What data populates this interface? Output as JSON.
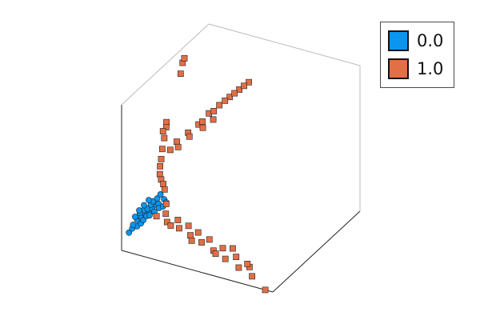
{
  "chart_data": {
    "type": "scatter",
    "projection": "3d",
    "grid": false,
    "legend_position": "top-right",
    "xlim": [
      0,
      1
    ],
    "ylim": [
      0,
      1
    ],
    "zlim": [
      0,
      1
    ],
    "series": [
      {
        "name": "0.0",
        "color": "#0a96f0",
        "marker": "circle",
        "points": [
          [
            0.02,
            0.1,
            0.05
          ],
          [
            0.03,
            0.12,
            0.07
          ],
          [
            0.05,
            0.13,
            0.09
          ],
          [
            0.07,
            0.15,
            0.1
          ],
          [
            0.03,
            0.14,
            0.08
          ],
          [
            0.04,
            0.16,
            0.11
          ],
          [
            0.06,
            0.17,
            0.12
          ],
          [
            0.08,
            0.17,
            0.11
          ],
          [
            0.05,
            0.18,
            0.13
          ],
          [
            0.07,
            0.2,
            0.14
          ],
          [
            0.09,
            0.19,
            0.13
          ],
          [
            0.1,
            0.21,
            0.15
          ],
          [
            0.06,
            0.21,
            0.15
          ],
          [
            0.08,
            0.22,
            0.16
          ],
          [
            0.11,
            0.23,
            0.16
          ],
          [
            0.12,
            0.25,
            0.18
          ],
          [
            0.04,
            0.19,
            0.14
          ],
          [
            0.09,
            0.24,
            0.18
          ],
          [
            0.13,
            0.22,
            0.15
          ],
          [
            0.1,
            0.26,
            0.19
          ],
          [
            0.14,
            0.26,
            0.18
          ],
          [
            0.02,
            0.17,
            0.12
          ],
          [
            0.15,
            0.24,
            0.17
          ],
          [
            0.12,
            0.28,
            0.2
          ],
          [
            0.16,
            0.28,
            0.21
          ],
          [
            0.05,
            0.23,
            0.17
          ],
          [
            0.17,
            0.25,
            0.18
          ],
          [
            0.07,
            0.26,
            0.19
          ],
          [
            0.11,
            0.2,
            0.13
          ],
          [
            0.18,
            0.27,
            0.2
          ],
          [
            0.03,
            0.2,
            0.15
          ],
          [
            0.13,
            0.3,
            0.22
          ]
        ]
      },
      {
        "name": "1.0",
        "color": "#e26f46",
        "marker": "square",
        "points": [
          [
            0.0,
            0.9,
            0.7
          ],
          [
            0.0,
            0.92,
            0.72
          ],
          [
            0.01,
            0.85,
            0.66
          ],
          [
            0.02,
            0.62,
            0.48
          ],
          [
            0.03,
            0.6,
            0.46
          ],
          [
            0.02,
            0.58,
            0.44
          ],
          [
            0.04,
            0.55,
            0.42
          ],
          [
            0.05,
            0.5,
            0.38
          ],
          [
            0.06,
            0.45,
            0.35
          ],
          [
            0.07,
            0.42,
            0.32
          ],
          [
            0.08,
            0.38,
            0.3
          ],
          [
            0.1,
            0.36,
            0.28
          ],
          [
            0.12,
            0.34,
            0.27
          ],
          [
            0.14,
            0.32,
            0.25
          ],
          [
            0.1,
            0.52,
            0.46
          ],
          [
            0.14,
            0.56,
            0.52
          ],
          [
            0.18,
            0.6,
            0.57
          ],
          [
            0.22,
            0.66,
            0.62
          ],
          [
            0.26,
            0.7,
            0.67
          ],
          [
            0.3,
            0.74,
            0.72
          ],
          [
            0.34,
            0.78,
            0.76
          ],
          [
            0.38,
            0.82,
            0.8
          ],
          [
            0.12,
            0.5,
            0.44
          ],
          [
            0.16,
            0.55,
            0.5
          ],
          [
            0.2,
            0.62,
            0.58
          ],
          [
            0.24,
            0.67,
            0.64
          ],
          [
            0.28,
            0.72,
            0.7
          ],
          [
            0.32,
            0.76,
            0.74
          ],
          [
            0.08,
            0.48,
            0.42
          ],
          [
            0.36,
            0.8,
            0.78
          ],
          [
            0.22,
            0.6,
            0.55
          ],
          [
            0.26,
            0.64,
            0.6
          ],
          [
            0.15,
            0.2,
            0.14
          ],
          [
            0.22,
            0.18,
            0.14
          ],
          [
            0.3,
            0.16,
            0.14
          ],
          [
            0.38,
            0.14,
            0.13
          ],
          [
            0.46,
            0.12,
            0.12
          ],
          [
            0.55,
            0.1,
            0.1
          ],
          [
            0.64,
            0.08,
            0.08
          ],
          [
            0.74,
            0.06,
            0.06
          ],
          [
            0.84,
            0.04,
            0.04
          ],
          [
            0.95,
            0.0,
            0.0
          ],
          [
            0.2,
            0.22,
            0.16
          ],
          [
            0.28,
            0.2,
            0.16
          ],
          [
            0.35,
            0.18,
            0.16
          ],
          [
            0.42,
            0.16,
            0.15
          ],
          [
            0.5,
            0.14,
            0.14
          ],
          [
            0.6,
            0.12,
            0.12
          ],
          [
            0.7,
            0.1,
            0.1
          ],
          [
            0.8,
            0.07,
            0.08
          ],
          [
            0.25,
            0.17,
            0.13
          ],
          [
            0.4,
            0.12,
            0.11
          ],
          [
            0.57,
            0.09,
            0.09
          ],
          [
            0.18,
            0.26,
            0.2
          ],
          [
            0.66,
            0.13,
            0.13
          ],
          [
            0.78,
            0.08,
            0.09
          ]
        ]
      }
    ]
  },
  "legend": {
    "items": [
      {
        "label": "0.0",
        "color": "#0a96f0"
      },
      {
        "label": "1.0",
        "color": "#e26f46"
      }
    ]
  }
}
